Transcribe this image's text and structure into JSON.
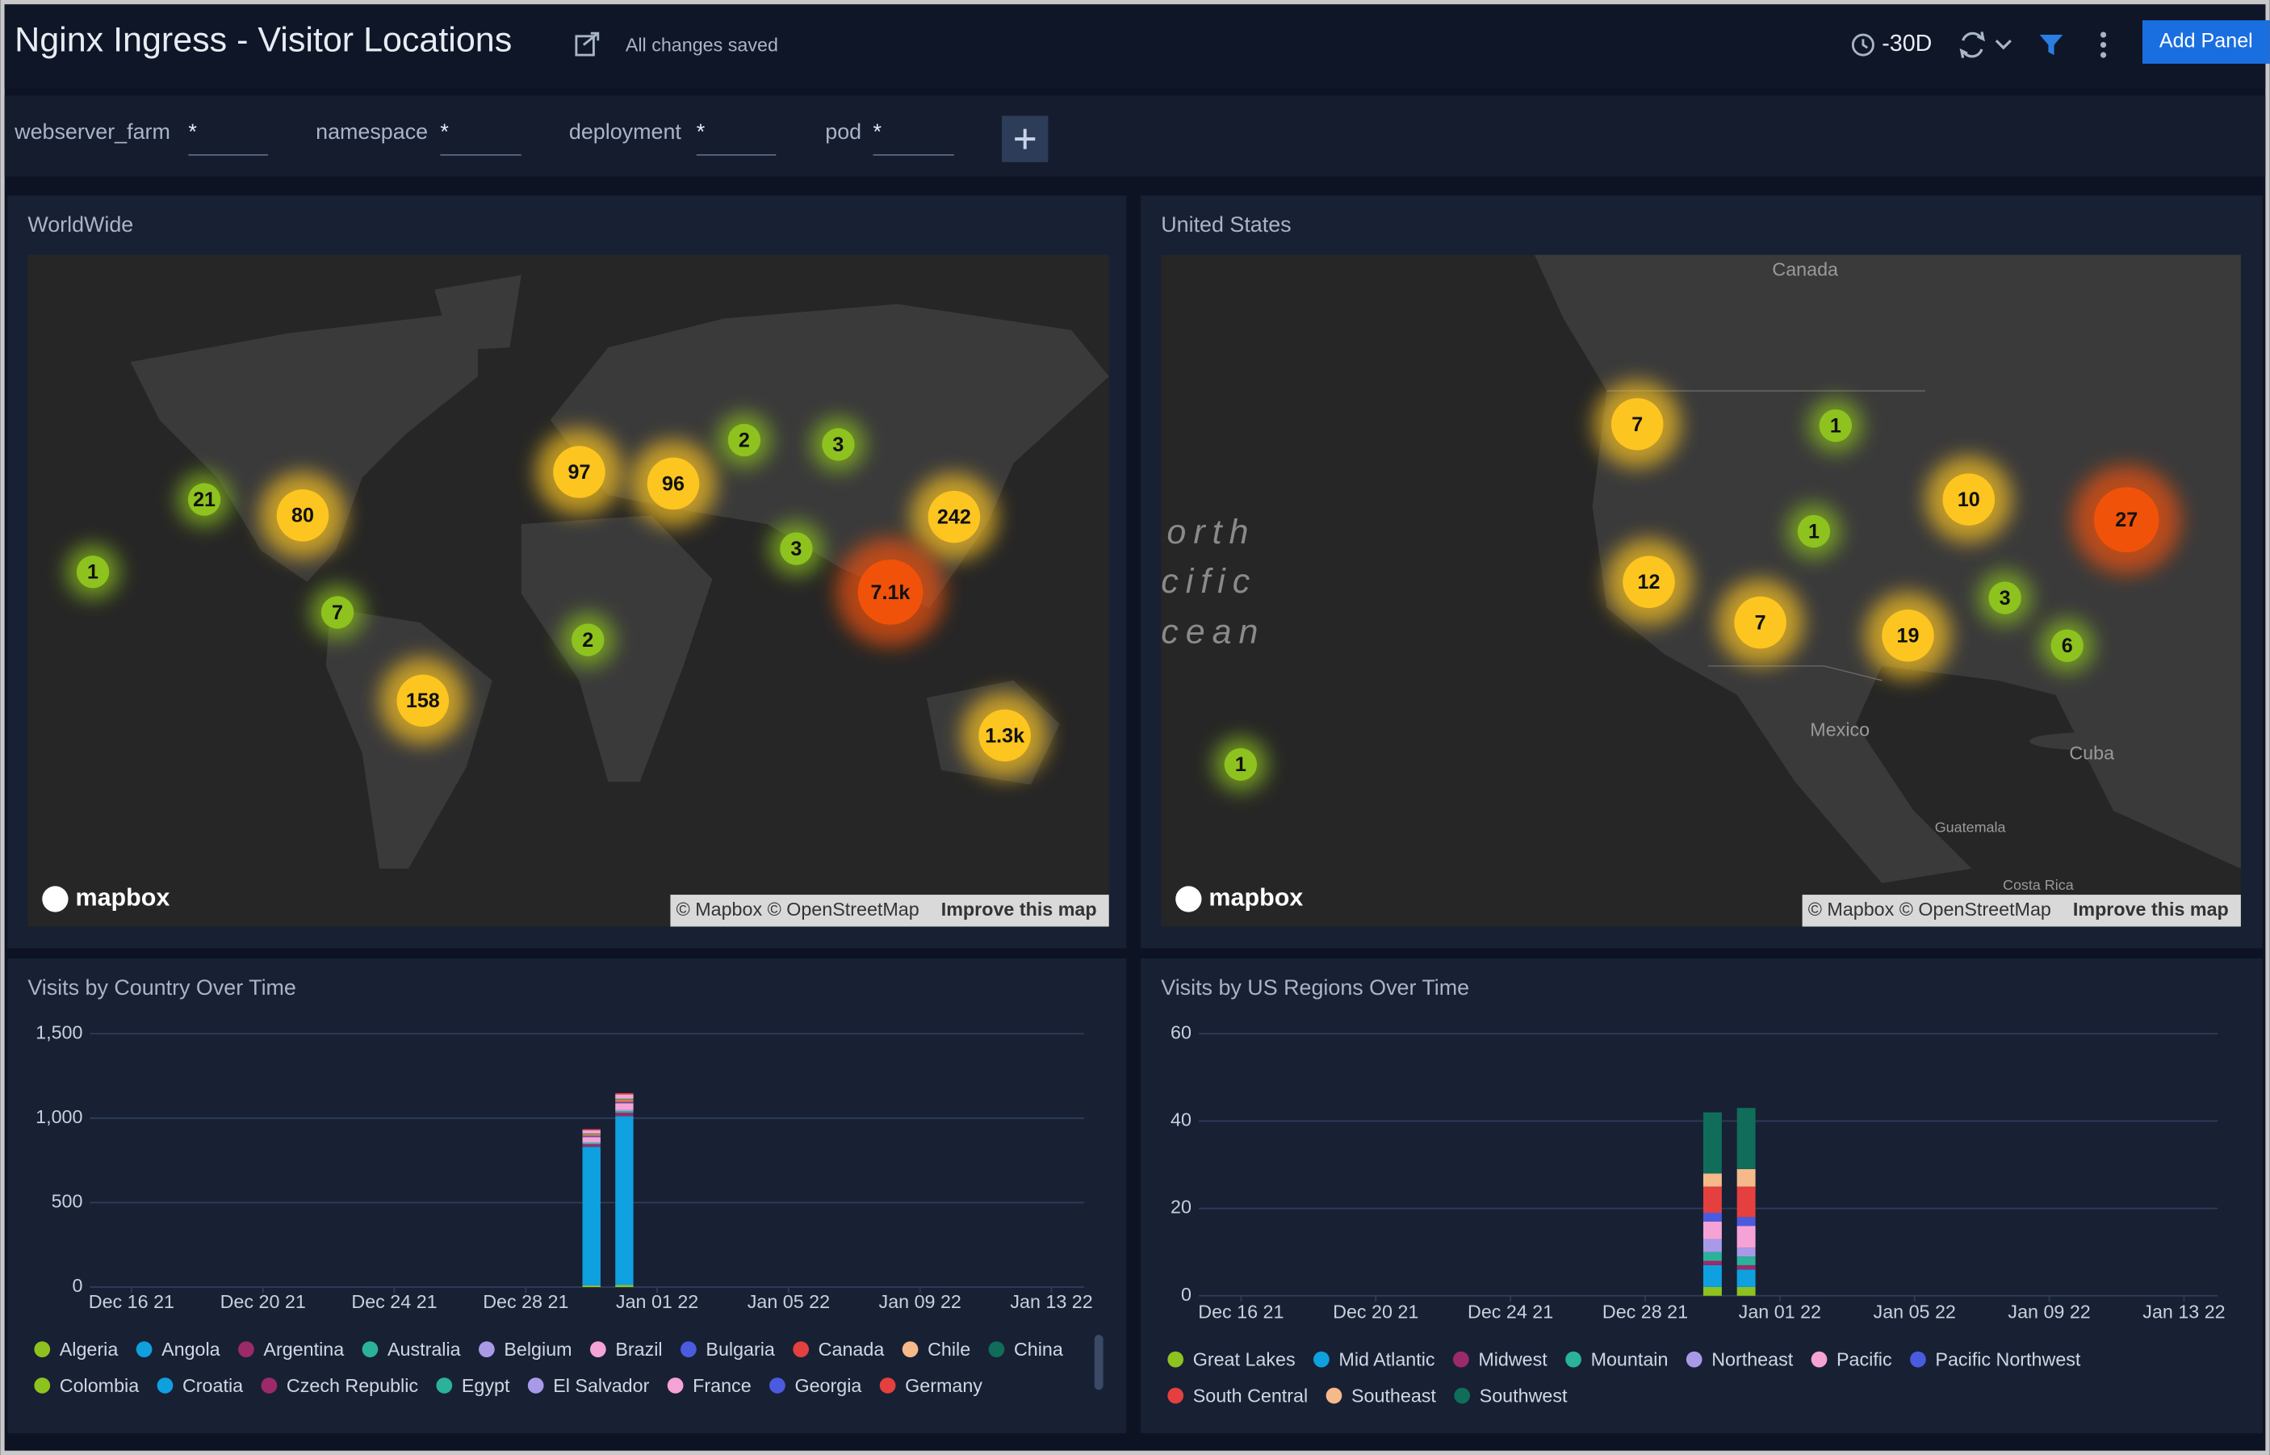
{
  "header": {
    "title": "Nginx Ingress - Visitor Locations",
    "status": "All changes saved",
    "time_range": "-30D",
    "add_panel": "Add Panel"
  },
  "filters": [
    {
      "label": "webserver_farm",
      "value": "*"
    },
    {
      "label": "namespace",
      "value": "*"
    },
    {
      "label": "deployment",
      "value": "*"
    },
    {
      "label": "pod",
      "value": "*"
    }
  ],
  "panels": {
    "world": {
      "title": "WorldWide",
      "logo": "mapbox",
      "attribution": "© Mapbox © OpenStreetMap",
      "improve": "Improve this map",
      "markers": [
        {
          "label": "1",
          "color": "#8ec21f"
        },
        {
          "label": "21",
          "color": "#8ec21f"
        },
        {
          "label": "80",
          "color": "#fcc520"
        },
        {
          "label": "7",
          "color": "#8ec21f"
        },
        {
          "label": "158",
          "color": "#fcc520"
        },
        {
          "label": "97",
          "color": "#fcc520"
        },
        {
          "label": "96",
          "color": "#fcc520"
        },
        {
          "label": "2",
          "color": "#8ec21f"
        },
        {
          "label": "3",
          "color": "#8ec21f"
        },
        {
          "label": "3",
          "color": "#8ec21f"
        },
        {
          "label": "2",
          "color": "#8ec21f"
        },
        {
          "label": "242",
          "color": "#fcc520"
        },
        {
          "label": "7.1k",
          "color": "#f0520a"
        },
        {
          "label": "1.3k",
          "color": "#fcc520"
        }
      ]
    },
    "us": {
      "title": "United States",
      "logo": "mapbox",
      "attribution": "© Mapbox © OpenStreetMap",
      "improve": "Improve this map",
      "places": [
        "Canada",
        "Mexico",
        "Cuba",
        "Guatemala",
        "Costa Rica"
      ],
      "ocean": [
        "orth",
        "cific",
        "cean"
      ],
      "markers": [
        {
          "label": "7",
          "color": "#fcc520"
        },
        {
          "label": "1",
          "color": "#8ec21f"
        },
        {
          "label": "1",
          "color": "#8ec21f"
        },
        {
          "label": "10",
          "color": "#fcc520"
        },
        {
          "label": "27",
          "color": "#f0520a"
        },
        {
          "label": "12",
          "color": "#fcc520"
        },
        {
          "label": "7",
          "color": "#fcc520"
        },
        {
          "label": "19",
          "color": "#fcc520"
        },
        {
          "label": "3",
          "color": "#8ec21f"
        },
        {
          "label": "6",
          "color": "#8ec21f"
        },
        {
          "label": "1",
          "color": "#8ec21f"
        }
      ]
    }
  },
  "chart_data": [
    {
      "type": "bar",
      "stacked": true,
      "title": "Visits by Country Over Time",
      "grid": true,
      "x": [
        "2021-12-30",
        "2021-12-31"
      ],
      "xlim": [
        "2021-12-15",
        "2022-01-14"
      ],
      "xticks": [
        {
          "value": "2021-12-16",
          "label": "Dec 16 21"
        },
        {
          "value": "2021-12-20",
          "label": "Dec 20 21"
        },
        {
          "value": "2021-12-24",
          "label": "Dec 24 21"
        },
        {
          "value": "2021-12-28",
          "label": "Dec 28 21"
        },
        {
          "value": "2022-01-01",
          "label": "Jan 01 22"
        },
        {
          "value": "2022-01-05",
          "label": "Jan 05 22"
        },
        {
          "value": "2022-01-09",
          "label": "Jan 09 22"
        },
        {
          "value": "2022-01-13",
          "label": "Jan 13 22"
        }
      ],
      "ylim": [
        0,
        1500
      ],
      "yticks": [
        0,
        500,
        {
          "value": 1000,
          "label": "1,000"
        },
        {
          "value": 1500,
          "label": "1,500"
        }
      ],
      "series": [
        {
          "name": "Algeria",
          "color": "#8ec21f",
          "values": [
            10,
            12
          ]
        },
        {
          "name": "Angola",
          "color": "#0fa0e0",
          "values": [
            820,
            1000
          ]
        },
        {
          "name": "Argentina",
          "color": "#9c2a6b",
          "values": [
            15,
            20
          ]
        },
        {
          "name": "Australia",
          "color": "#2ab39a",
          "values": [
            8,
            10
          ]
        },
        {
          "name": "Belgium",
          "color": "#a99ae8",
          "values": [
            5,
            6
          ]
        },
        {
          "name": "Brazil",
          "color": "#f5a3d6",
          "values": [
            30,
            40
          ]
        },
        {
          "name": "Bulgaria",
          "color": "#4b5be0",
          "values": [
            4,
            5
          ]
        },
        {
          "name": "Canada",
          "color": "#e3403f",
          "values": [
            6,
            8
          ]
        },
        {
          "name": "Chile",
          "color": "#f5b98a",
          "values": [
            5,
            6
          ]
        },
        {
          "name": "China",
          "color": "#0f6d5a",
          "values": [
            3,
            4
          ]
        },
        {
          "name": "Colombia",
          "color": "#8ec21f",
          "values": [
            2,
            3
          ]
        },
        {
          "name": "Croatia",
          "color": "#0fa0e0",
          "values": [
            0,
            0
          ]
        },
        {
          "name": "Czech Republic",
          "color": "#9c2a6b",
          "values": [
            0,
            0
          ]
        },
        {
          "name": "Egypt",
          "color": "#2ab39a",
          "values": [
            1,
            1
          ]
        },
        {
          "name": "El Salvador",
          "color": "#a99ae8",
          "values": [
            0,
            0
          ]
        },
        {
          "name": "France",
          "color": "#f5a3d6",
          "values": [
            20,
            25
          ]
        },
        {
          "name": "Georgia",
          "color": "#4b5be0",
          "values": [
            0,
            0
          ]
        },
        {
          "name": "Germany",
          "color": "#e3403f",
          "values": [
            6,
            8
          ]
        }
      ]
    },
    {
      "type": "bar",
      "stacked": true,
      "title": "Visits by US Regions Over Time",
      "grid": true,
      "x": [
        "2021-12-30",
        "2021-12-31"
      ],
      "xlim": [
        "2021-12-15",
        "2022-01-14"
      ],
      "xticks": [
        {
          "value": "2021-12-16",
          "label": "Dec 16 21"
        },
        {
          "value": "2021-12-20",
          "label": "Dec 20 21"
        },
        {
          "value": "2021-12-24",
          "label": "Dec 24 21"
        },
        {
          "value": "2021-12-28",
          "label": "Dec 28 21"
        },
        {
          "value": "2022-01-01",
          "label": "Jan 01 22"
        },
        {
          "value": "2022-01-05",
          "label": "Jan 05 22"
        },
        {
          "value": "2022-01-09",
          "label": "Jan 09 22"
        },
        {
          "value": "2022-01-13",
          "label": "Jan 13 22"
        }
      ],
      "ylim": [
        0,
        60
      ],
      "yticks": [
        0,
        20,
        40,
        60
      ],
      "series": [
        {
          "name": "Great Lakes",
          "color": "#8ec21f",
          "values": [
            2,
            2
          ]
        },
        {
          "name": "Mid Atlantic",
          "color": "#0fa0e0",
          "values": [
            5,
            4
          ]
        },
        {
          "name": "Midwest",
          "color": "#9c2a6b",
          "values": [
            1,
            1
          ]
        },
        {
          "name": "Mountain",
          "color": "#2ab39a",
          "values": [
            2,
            2
          ]
        },
        {
          "name": "Northeast",
          "color": "#a99ae8",
          "values": [
            3,
            2
          ]
        },
        {
          "name": "Pacific",
          "color": "#f5a3d6",
          "values": [
            4,
            5
          ]
        },
        {
          "name": "Pacific Northwest",
          "color": "#4b5be0",
          "values": [
            2,
            2
          ]
        },
        {
          "name": "South Central",
          "color": "#e3403f",
          "values": [
            6,
            7
          ]
        },
        {
          "name": "Southeast",
          "color": "#f5b98a",
          "values": [
            3,
            4
          ]
        },
        {
          "name": "Southwest",
          "color": "#0f6d5a",
          "values": [
            14,
            14
          ]
        }
      ]
    }
  ]
}
